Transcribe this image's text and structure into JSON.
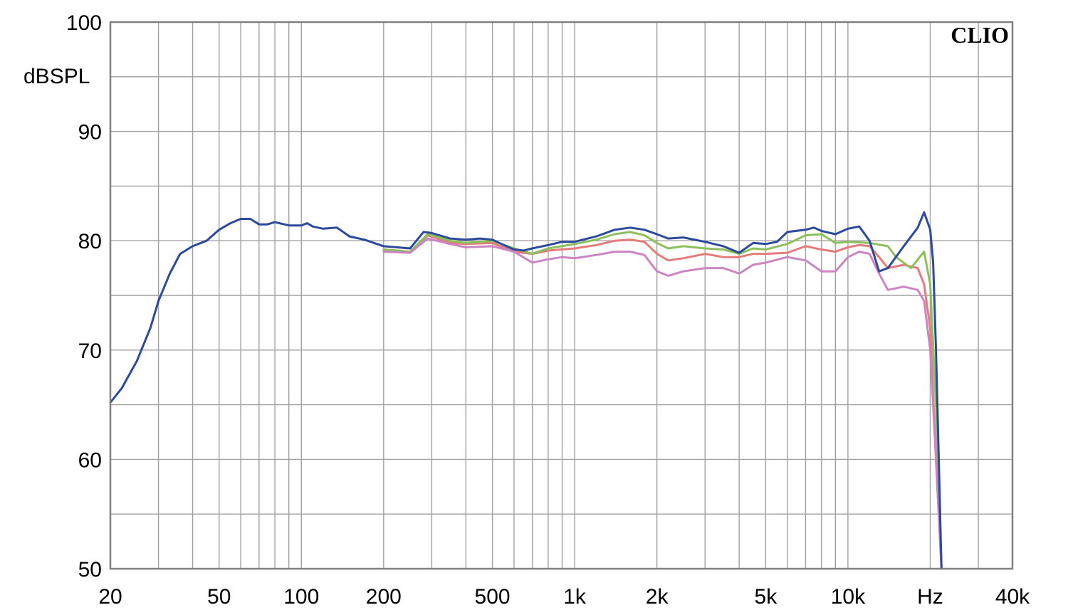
{
  "chart_data": {
    "type": "line",
    "title": "",
    "brand": "CLIO",
    "xlabel": "Hz",
    "ylabel": "dBSPL",
    "x_scale": "log",
    "xlim": [
      20,
      40000
    ],
    "ylim": [
      50,
      100
    ],
    "x_ticks": [
      {
        "value": 20,
        "label": "20"
      },
      {
        "value": 50,
        "label": "50"
      },
      {
        "value": 100,
        "label": "100"
      },
      {
        "value": 200,
        "label": "200"
      },
      {
        "value": 500,
        "label": "500"
      },
      {
        "value": 1000,
        "label": "1k"
      },
      {
        "value": 2000,
        "label": "2k"
      },
      {
        "value": 5000,
        "label": "5k"
      },
      {
        "value": 10000,
        "label": "10k"
      },
      {
        "value": 20000,
        "label": "Hz"
      },
      {
        "value": 40000,
        "label": "40k"
      }
    ],
    "y_ticks": [
      {
        "value": 100,
        "label": "100"
      },
      {
        "value": 90,
        "label": "90"
      },
      {
        "value": 80,
        "label": "80"
      },
      {
        "value": 70,
        "label": "70"
      },
      {
        "value": 60,
        "label": "60"
      },
      {
        "value": 50,
        "label": "50"
      }
    ],
    "grid": true,
    "colors": {
      "background": "#ffffff",
      "grid": "#a0a0a0",
      "frame": "#808080"
    },
    "series": [
      {
        "color": "#e57b7b",
        "points": [
          [
            200,
            79.2
          ],
          [
            250,
            79.0
          ],
          [
            290,
            80.5
          ],
          [
            350,
            79.8
          ],
          [
            400,
            79.7
          ],
          [
            500,
            79.8
          ],
          [
            600,
            79.0
          ],
          [
            700,
            78.8
          ],
          [
            800,
            79.1
          ],
          [
            1000,
            79.3
          ],
          [
            1200,
            79.6
          ],
          [
            1400,
            80.0
          ],
          [
            1600,
            80.1
          ],
          [
            1800,
            79.9
          ],
          [
            2000,
            78.8
          ],
          [
            2200,
            78.2
          ],
          [
            2500,
            78.4
          ],
          [
            3000,
            78.8
          ],
          [
            3500,
            78.5
          ],
          [
            4000,
            78.5
          ],
          [
            4500,
            78.8
          ],
          [
            5000,
            78.8
          ],
          [
            6000,
            78.9
          ],
          [
            7000,
            79.5
          ],
          [
            8000,
            79.2
          ],
          [
            9000,
            79.0
          ],
          [
            10000,
            79.4
          ],
          [
            11000,
            79.6
          ],
          [
            12000,
            79.5
          ],
          [
            13000,
            78.5
          ],
          [
            14000,
            77.5
          ],
          [
            16000,
            77.8
          ],
          [
            18000,
            77.5
          ],
          [
            19000,
            76.0
          ],
          [
            20000,
            72.0
          ],
          [
            21000,
            60.0
          ],
          [
            22000,
            50.0
          ]
        ]
      },
      {
        "color": "#8dbf5d",
        "points": [
          [
            200,
            79.2
          ],
          [
            250,
            79.0
          ],
          [
            290,
            80.6
          ],
          [
            350,
            80.0
          ],
          [
            400,
            79.8
          ],
          [
            500,
            80.0
          ],
          [
            600,
            79.3
          ],
          [
            700,
            78.8
          ],
          [
            800,
            79.3
          ],
          [
            1000,
            79.7
          ],
          [
            1200,
            80.1
          ],
          [
            1400,
            80.6
          ],
          [
            1600,
            80.8
          ],
          [
            1800,
            80.5
          ],
          [
            2000,
            79.8
          ],
          [
            2200,
            79.3
          ],
          [
            2500,
            79.5
          ],
          [
            3000,
            79.3
          ],
          [
            3500,
            79.2
          ],
          [
            4000,
            78.8
          ],
          [
            4500,
            79.3
          ],
          [
            5000,
            79.2
          ],
          [
            6000,
            79.7
          ],
          [
            7000,
            80.5
          ],
          [
            8000,
            80.6
          ],
          [
            9000,
            79.8
          ],
          [
            10000,
            79.9
          ],
          [
            12000,
            79.8
          ],
          [
            14000,
            79.5
          ],
          [
            15000,
            78.5
          ],
          [
            17000,
            77.5
          ],
          [
            19000,
            79.0
          ],
          [
            20000,
            76.0
          ],
          [
            21000,
            65.0
          ],
          [
            22000,
            50.0
          ]
        ]
      },
      {
        "color": "#cc85c2",
        "points": [
          [
            200,
            79.0
          ],
          [
            250,
            78.9
          ],
          [
            290,
            80.2
          ],
          [
            350,
            79.7
          ],
          [
            400,
            79.4
          ],
          [
            500,
            79.5
          ],
          [
            600,
            79.0
          ],
          [
            700,
            78.0
          ],
          [
            800,
            78.3
          ],
          [
            900,
            78.5
          ],
          [
            1000,
            78.4
          ],
          [
            1200,
            78.7
          ],
          [
            1400,
            79.0
          ],
          [
            1600,
            79.0
          ],
          [
            1800,
            78.7
          ],
          [
            2000,
            77.2
          ],
          [
            2200,
            76.8
          ],
          [
            2500,
            77.2
          ],
          [
            3000,
            77.5
          ],
          [
            3500,
            77.5
          ],
          [
            4000,
            77.0
          ],
          [
            4500,
            77.8
          ],
          [
            5000,
            78.0
          ],
          [
            6000,
            78.5
          ],
          [
            7000,
            78.2
          ],
          [
            8000,
            77.2
          ],
          [
            9000,
            77.2
          ],
          [
            10000,
            78.5
          ],
          [
            11000,
            79.0
          ],
          [
            12000,
            78.8
          ],
          [
            13000,
            77.0
          ],
          [
            14000,
            75.5
          ],
          [
            16000,
            75.8
          ],
          [
            18000,
            75.5
          ],
          [
            19000,
            74.5
          ],
          [
            20000,
            70.0
          ],
          [
            21000,
            60.0
          ],
          [
            22000,
            50.0
          ]
        ]
      },
      {
        "color": "#2b4a9c",
        "points": [
          [
            20,
            65.2
          ],
          [
            22,
            66.5
          ],
          [
            25,
            69.0
          ],
          [
            28,
            72.0
          ],
          [
            30,
            74.5
          ],
          [
            33,
            77.0
          ],
          [
            36,
            78.8
          ],
          [
            40,
            79.5
          ],
          [
            45,
            80.0
          ],
          [
            50,
            81.0
          ],
          [
            55,
            81.6
          ],
          [
            60,
            82.0
          ],
          [
            65,
            82.0
          ],
          [
            70,
            81.5
          ],
          [
            75,
            81.5
          ],
          [
            80,
            81.7
          ],
          [
            90,
            81.4
          ],
          [
            100,
            81.4
          ],
          [
            105,
            81.6
          ],
          [
            110,
            81.3
          ],
          [
            120,
            81.1
          ],
          [
            135,
            81.2
          ],
          [
            150,
            80.4
          ],
          [
            170,
            80.1
          ],
          [
            200,
            79.5
          ],
          [
            250,
            79.3
          ],
          [
            280,
            80.8
          ],
          [
            300,
            80.7
          ],
          [
            350,
            80.2
          ],
          [
            400,
            80.1
          ],
          [
            450,
            80.2
          ],
          [
            500,
            80.1
          ],
          [
            550,
            79.6
          ],
          [
            600,
            79.2
          ],
          [
            650,
            79.1
          ],
          [
            700,
            79.3
          ],
          [
            800,
            79.6
          ],
          [
            900,
            79.9
          ],
          [
            1000,
            79.9
          ],
          [
            1200,
            80.4
          ],
          [
            1400,
            81.0
          ],
          [
            1600,
            81.2
          ],
          [
            1800,
            81.0
          ],
          [
            2000,
            80.6
          ],
          [
            2200,
            80.2
          ],
          [
            2500,
            80.3
          ],
          [
            3000,
            79.9
          ],
          [
            3500,
            79.5
          ],
          [
            4000,
            78.9
          ],
          [
            4500,
            79.8
          ],
          [
            5000,
            79.7
          ],
          [
            5500,
            79.9
          ],
          [
            6000,
            80.8
          ],
          [
            7000,
            81.0
          ],
          [
            7500,
            81.2
          ],
          [
            8000,
            80.9
          ],
          [
            9000,
            80.6
          ],
          [
            10000,
            81.1
          ],
          [
            11000,
            81.3
          ],
          [
            12000,
            80.0
          ],
          [
            13000,
            77.2
          ],
          [
            14000,
            77.5
          ],
          [
            16000,
            79.5
          ],
          [
            18000,
            81.2
          ],
          [
            19000,
            82.6
          ],
          [
            20000,
            81.0
          ],
          [
            20500,
            78.0
          ],
          [
            21000,
            70.0
          ],
          [
            21500,
            60.0
          ],
          [
            22000,
            50.0
          ]
        ]
      }
    ]
  }
}
